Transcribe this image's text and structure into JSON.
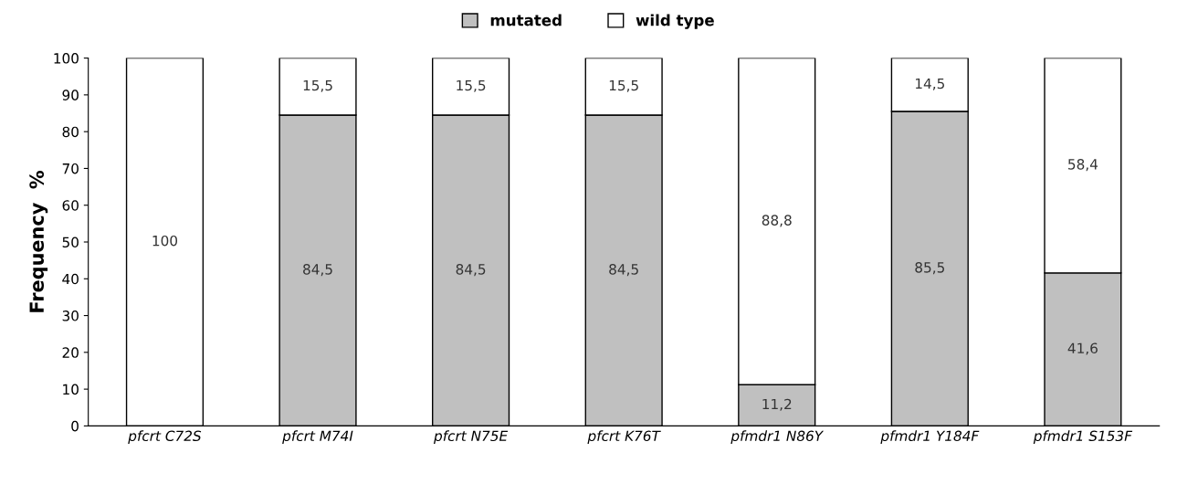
{
  "chart_data": {
    "type": "bar",
    "stacked": true,
    "ylabel": "Frequency  %",
    "categories": [
      "pfcrt C72S",
      "pfcrt M74I",
      "pfcrt N75E",
      "pfcrt K76T",
      "pfmdr1 N86Y",
      "pfmdr1 Y184F",
      "pfmdr1 S153F"
    ],
    "series": [
      {
        "name": "mutated",
        "color": "#c0c0c0",
        "values": [
          0,
          84.5,
          84.5,
          84.5,
          11.2,
          85.5,
          41.6
        ],
        "value_labels": [
          null,
          "84,5",
          "84,5",
          "84,5",
          "11,2",
          "85,5",
          "41,6"
        ]
      },
      {
        "name": "wild type",
        "color": "#ffffff",
        "values": [
          100,
          15.5,
          15.5,
          15.5,
          88.8,
          14.5,
          58.4
        ],
        "value_labels": [
          "100",
          "15,5",
          "15,5",
          "15,5",
          "88,8",
          "14,5",
          "58,4"
        ]
      }
    ],
    "ylim": [
      0,
      100
    ],
    "yticks": [
      0,
      10,
      20,
      30,
      40,
      50,
      60,
      70,
      80,
      90,
      100
    ],
    "grid": false,
    "legend": "top"
  }
}
